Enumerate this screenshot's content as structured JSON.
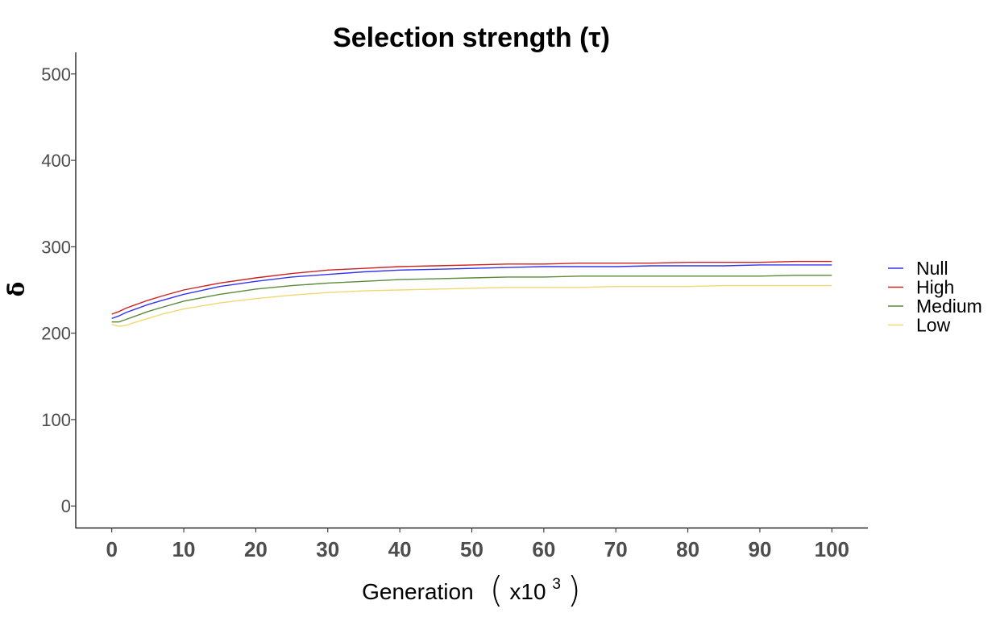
{
  "chart_data": {
    "type": "line",
    "title": "Selection strength (τ)",
    "xlabel": "Generation",
    "xlabel_unit_base": "x10",
    "xlabel_unit_exp": "3",
    "ylabel": "δ̄",
    "xlim": [
      -5,
      105
    ],
    "ylim": [
      -25,
      525
    ],
    "xticks": [
      0,
      10,
      20,
      30,
      40,
      50,
      60,
      70,
      80,
      90,
      100
    ],
    "xtick_labels": [
      "0",
      "10",
      "20",
      "30",
      "40",
      "50",
      "60",
      "70",
      "80",
      "90",
      "100"
    ],
    "yticks": [
      0,
      100,
      200,
      300,
      400,
      500
    ],
    "ytick_labels": [
      "0",
      "100",
      "200",
      "300",
      "400",
      "500"
    ],
    "grid": false,
    "legend_position": "right",
    "series": [
      {
        "name": "Null",
        "color": "#3333ee",
        "x": [
          0,
          1,
          2,
          3,
          5,
          7,
          10,
          15,
          20,
          25,
          30,
          35,
          40,
          45,
          50,
          55,
          60,
          65,
          70,
          75,
          80,
          85,
          90,
          95,
          100
        ],
        "y": [
          217,
          220,
          224,
          227,
          233,
          238,
          245,
          254,
          260,
          265,
          268,
          271,
          273,
          274,
          275,
          276,
          277,
          277,
          277,
          278,
          278,
          278,
          279,
          279,
          279
        ]
      },
      {
        "name": "High",
        "color": "#cc2222",
        "x": [
          0,
          1,
          2,
          3,
          5,
          7,
          10,
          15,
          20,
          25,
          30,
          35,
          40,
          45,
          50,
          55,
          60,
          65,
          70,
          75,
          80,
          85,
          90,
          95,
          100
        ],
        "y": [
          222,
          225,
          229,
          232,
          238,
          243,
          250,
          258,
          264,
          269,
          273,
          275,
          277,
          278,
          279,
          280,
          280,
          281,
          281,
          281,
          282,
          282,
          282,
          283,
          283
        ]
      },
      {
        "name": "Medium",
        "color": "#5a8a3a",
        "x": [
          0,
          1,
          2,
          3,
          5,
          7,
          10,
          15,
          20,
          25,
          30,
          35,
          40,
          45,
          50,
          55,
          60,
          65,
          70,
          75,
          80,
          85,
          90,
          95,
          100
        ],
        "y": [
          213,
          213,
          216,
          219,
          225,
          230,
          237,
          245,
          251,
          255,
          258,
          260,
          262,
          263,
          264,
          265,
          265,
          266,
          266,
          266,
          266,
          266,
          266,
          267,
          267
        ]
      },
      {
        "name": "Low",
        "color": "#f0d870",
        "x": [
          0,
          1,
          2,
          3,
          5,
          7,
          10,
          15,
          20,
          25,
          30,
          35,
          40,
          45,
          50,
          55,
          60,
          65,
          70,
          75,
          80,
          85,
          90,
          95,
          100
        ],
        "y": [
          210,
          208,
          209,
          212,
          217,
          222,
          228,
          235,
          240,
          244,
          247,
          249,
          250,
          251,
          252,
          253,
          253,
          253,
          254,
          254,
          254,
          255,
          255,
          255,
          255
        ]
      }
    ]
  }
}
